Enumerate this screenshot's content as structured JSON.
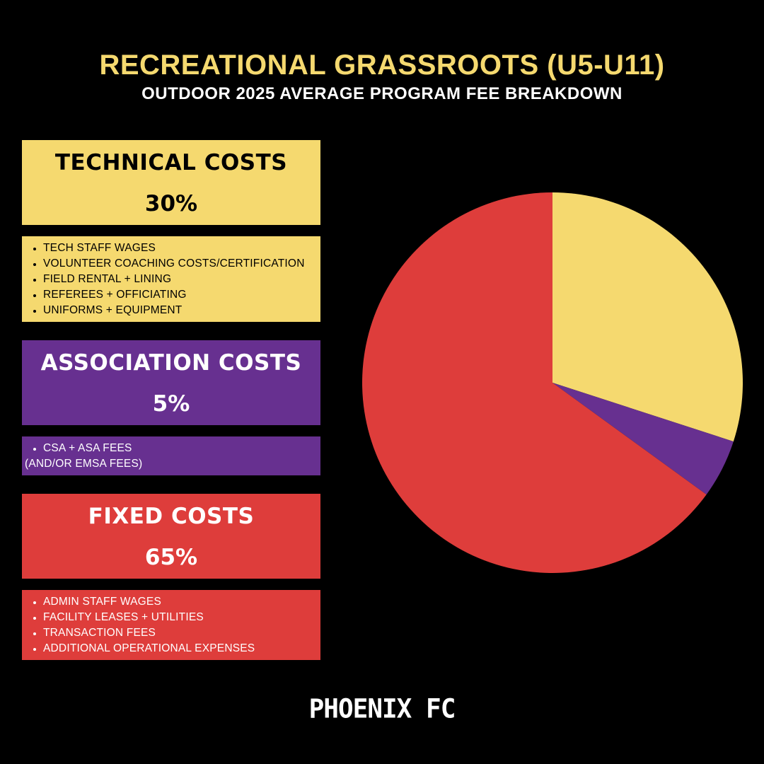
{
  "header": {
    "title": "RECREATIONAL GRASSROOTS (U5-U11)",
    "subtitle": "OUTDOOR 2025 AVERAGE PROGRAM FEE BREAKDOWN"
  },
  "categories": [
    {
      "label": "TECHNICAL COSTS",
      "percent_label": "30%",
      "color": "#f5d96f",
      "items": [
        "TECH STAFF WAGES",
        "VOLUNTEER COACHING COSTS/CERTIFICATION",
        "FIELD RENTAL + LINING",
        "REFEREES + OFFICIATING",
        "UNIFORMS + EQUIPMENT"
      ]
    },
    {
      "label": "ASSOCIATION COSTS",
      "percent_label": "5%",
      "color": "#673090",
      "items": [
        "CSA + ASA FEES"
      ],
      "note": "(AND/OR EMSA FEES)"
    },
    {
      "label": "FIXED COSTS",
      "percent_label": "65%",
      "color": "#de3d3b",
      "items": [
        "ADMIN STAFF WAGES",
        "FACILITY LEASES + UTILITIES",
        "TRANSACTION FEES",
        "ADDITIONAL OPERATIONAL EXPENSES"
      ]
    }
  ],
  "chart_data": {
    "type": "pie",
    "title": "",
    "start_angle": "12 o'clock",
    "direction": "clockwise",
    "slices": [
      {
        "label": "TECHNICAL COSTS",
        "value": 30,
        "color": "#f5d96f"
      },
      {
        "label": "ASSOCIATION COSTS",
        "value": 5,
        "color": "#673090"
      },
      {
        "label": "FIXED COSTS",
        "value": 65,
        "color": "#de3d3b"
      }
    ],
    "legend": "none"
  },
  "brand": {
    "name": "PHOENIX FC"
  }
}
